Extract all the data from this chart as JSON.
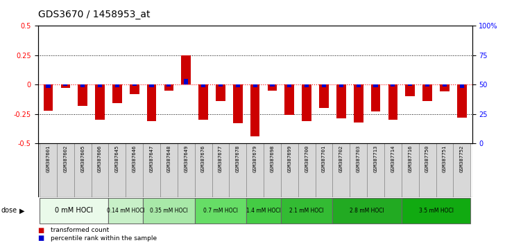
{
  "title": "GDS3670 / 1458953_at",
  "samples": [
    "GSM387601",
    "GSM387602",
    "GSM387605",
    "GSM387606",
    "GSM387645",
    "GSM387646",
    "GSM387647",
    "GSM387648",
    "GSM387649",
    "GSM387676",
    "GSM387677",
    "GSM387678",
    "GSM387679",
    "GSM387698",
    "GSM387699",
    "GSM387700",
    "GSM387701",
    "GSM387702",
    "GSM387703",
    "GSM387713",
    "GSM387714",
    "GSM387716",
    "GSM387750",
    "GSM387751",
    "GSM387752"
  ],
  "red_bars": [
    -0.22,
    -0.03,
    -0.18,
    -0.3,
    -0.16,
    -0.08,
    -0.31,
    -0.05,
    0.25,
    -0.3,
    -0.14,
    -0.33,
    -0.44,
    -0.05,
    -0.26,
    -0.31,
    -0.2,
    -0.29,
    -0.32,
    -0.23,
    -0.3,
    -0.1,
    -0.14,
    -0.06,
    -0.28
  ],
  "blue_bars": [
    -0.03,
    -0.01,
    -0.02,
    -0.02,
    -0.02,
    -0.01,
    -0.02,
    -0.015,
    0.05,
    -0.025,
    -0.015,
    -0.02,
    -0.02,
    -0.015,
    -0.02,
    -0.025,
    -0.02,
    -0.02,
    -0.025,
    -0.02,
    -0.015,
    -0.01,
    -0.015,
    -0.015,
    -0.03
  ],
  "dose_groups": [
    {
      "label": "0 mM HOCl",
      "start": 0,
      "end": 4,
      "color": "#eafaea"
    },
    {
      "label": "0.14 mM HOCl",
      "start": 4,
      "end": 6,
      "color": "#c8f0c8"
    },
    {
      "label": "0.35 mM HOCl",
      "start": 6,
      "end": 9,
      "color": "#a8e8a8"
    },
    {
      "label": "0.7 mM HOCl",
      "start": 9,
      "end": 12,
      "color": "#66dd66"
    },
    {
      "label": "1.4 mM HOCl",
      "start": 12,
      "end": 14,
      "color": "#44cc44"
    },
    {
      "label": "2.1 mM HOCl",
      "start": 14,
      "end": 17,
      "color": "#33bb33"
    },
    {
      "label": "2.8 mM HOCl",
      "start": 17,
      "end": 21,
      "color": "#22aa22"
    },
    {
      "label": "3.5 mM HOCl",
      "start": 21,
      "end": 25,
      "color": "#11aa11"
    }
  ],
  "ylim": [
    -0.5,
    0.5
  ],
  "yticks_left": [
    -0.5,
    -0.25,
    0.0,
    0.25,
    0.5
  ],
  "ytick_labels_left": [
    "-0.5",
    "-0.25",
    "0",
    "0.25",
    "0.5"
  ],
  "ytick_labels_right": [
    "0",
    "25",
    "50",
    "75",
    "100%"
  ],
  "yticks_right": [
    0,
    25,
    50,
    75,
    100
  ],
  "bar_width": 0.55,
  "red_color": "#cc0000",
  "blue_color": "#0000cc",
  "title_fontsize": 10,
  "label_bg": "#d8d8d8"
}
